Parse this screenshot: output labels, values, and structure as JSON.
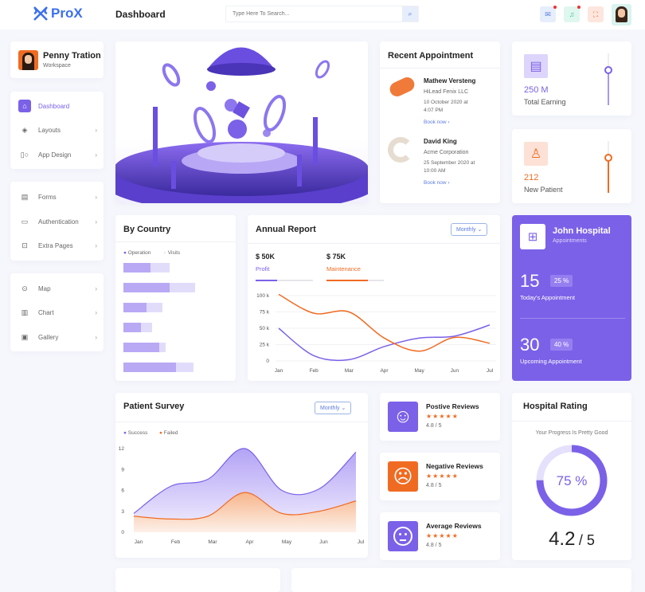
{
  "header": {
    "logo": "ProX",
    "title": "Dashboard",
    "search_placeholder": "Type Here To Search...",
    "icons": [
      "mail-icon",
      "bell-icon",
      "fullscreen-icon"
    ]
  },
  "profile": {
    "name": "Penny Tration",
    "role": "Workspace"
  },
  "sidebar": {
    "groups": [
      [
        {
          "label": "Dashboard",
          "icon": "home-icon",
          "active": true
        },
        {
          "label": "Layouts",
          "icon": "diamond-icon"
        },
        {
          "label": "App Design",
          "icon": "design-icon"
        }
      ],
      [
        {
          "label": "Forms",
          "icon": "form-icon"
        },
        {
          "label": "Authentication",
          "icon": "auth-icon"
        },
        {
          "label": "Extra Pages",
          "icon": "pages-icon"
        }
      ],
      [
        {
          "label": "Map",
          "icon": "map-pin-icon"
        },
        {
          "label": "Chart",
          "icon": "chart-icon"
        },
        {
          "label": "Gallery",
          "icon": "gallery-icon"
        }
      ]
    ]
  },
  "appointments": {
    "title": "Recent Appointment",
    "items": [
      {
        "name": "Mathew Versteng",
        "company": "HiLead Fenix LLC",
        "date": "10 October 2020 at 4:07 PM",
        "link": "Book now"
      },
      {
        "name": "David King",
        "company": "Acme Corporation",
        "date": "25 September 2020 at 10:00 AM",
        "link": "Book now"
      }
    ]
  },
  "stats": [
    {
      "value": "250 M",
      "label": "Total Earning",
      "color": "#7b61e8",
      "level": 0.25
    },
    {
      "value": "212",
      "label": "New Patient",
      "color": "#f06b22",
      "level": 0.35
    }
  ],
  "hospital": {
    "name": "John Hospital",
    "sub": "Appointments",
    "today": "15",
    "today_pct": "25 %",
    "today_label": "Today's Appointment",
    "upcoming": "30",
    "upcoming_pct": "40 %",
    "upcoming_label": "Upcoming Appointment"
  },
  "by_country": {
    "title": "By Country",
    "legend": [
      "Operation",
      "Visits"
    ],
    "bars": [
      {
        "operation": 34,
        "visits": 58
      },
      {
        "operation": 58,
        "visits": 90
      },
      {
        "operation": 29,
        "visits": 49
      },
      {
        "operation": 22,
        "visits": 36
      },
      {
        "operation": 45,
        "visits": 53
      },
      {
        "operation": 66,
        "visits": 88
      }
    ]
  },
  "annual": {
    "title": "Annual Report",
    "dropdown": "Monthly",
    "kpis": [
      {
        "value": "$ 50K",
        "label": "Profit",
        "color": "#7b61e8",
        "progress": 0.38
      },
      {
        "value": "$ 75K",
        "label": "Maintenance",
        "color": "#f06b22",
        "progress": 0.72
      }
    ]
  },
  "survey": {
    "title": "Patient Survey",
    "dropdown": "Monthly"
  },
  "reviews": [
    {
      "title": "Postive Reviews",
      "score": "4.8 / 5",
      "color": "#7b61e8",
      "icon": "smile-icon",
      "face": "☺"
    },
    {
      "title": "Negative Reviews",
      "score": "4.8 / 5",
      "color": "#f06b22",
      "icon": "frown-icon",
      "face": "☹"
    },
    {
      "title": "Average Reviews",
      "score": "4.8 / 5",
      "color": "#7b61e8",
      "icon": "neutral-face-icon",
      "face": "😐"
    }
  ],
  "rating": {
    "title": "Hospital Rating",
    "subtitle": "Your Progress Is Pretty Good",
    "percent": 75,
    "percent_label": "75 %",
    "score": "4.2",
    "out_of": "/ 5"
  },
  "chart_data": [
    {
      "type": "line",
      "title": "Annual Report",
      "categories": [
        "Jan",
        "Feb",
        "Mar",
        "Apr",
        "May",
        "Jun",
        "Jul"
      ],
      "yticks": [
        "0",
        "25 k",
        "50 k",
        "75 k",
        "100 k"
      ],
      "ylim": [
        0,
        100
      ],
      "series": [
        {
          "name": "Profit",
          "color": "#7b61e8",
          "values": [
            50,
            8,
            2,
            22,
            35,
            38,
            55
          ]
        },
        {
          "name": "Maintenance",
          "color": "#f06b22",
          "values": [
            102,
            73,
            75,
            35,
            15,
            36,
            27
          ]
        }
      ]
    },
    {
      "type": "area",
      "title": "Patient Survey",
      "categories": [
        "Jan",
        "Feb",
        "Mar",
        "Apr",
        "May",
        "Jun",
        "Jul"
      ],
      "yticks": [
        "0",
        "3",
        "6",
        "9",
        "12"
      ],
      "ylim": [
        0,
        12
      ],
      "series": [
        {
          "name": "Success",
          "color": "#7b61e8",
          "values": [
            2.7,
            6.6,
            7.6,
            12,
            6,
            6.2,
            11.5
          ]
        },
        {
          "name": "Failed",
          "color": "#f06b22",
          "values": [
            2.3,
            1.9,
            2.3,
            5.7,
            2.7,
            3,
            4.5
          ]
        }
      ]
    }
  ]
}
